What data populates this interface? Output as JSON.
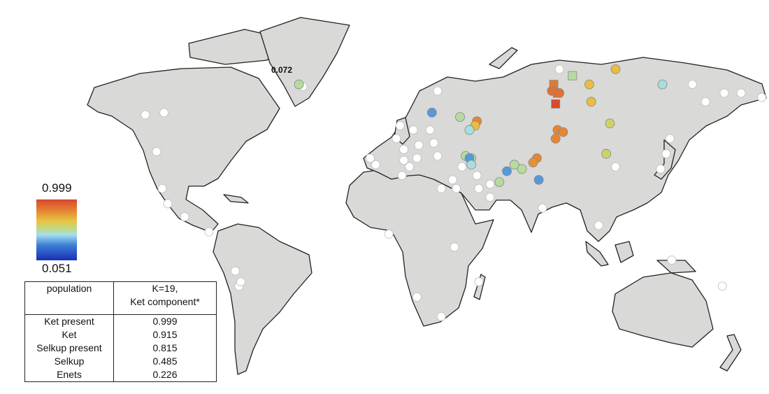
{
  "annotation": {
    "label": "0.072"
  },
  "colorbar": {
    "max_label": "0.999",
    "min_label": "0.051",
    "colors": [
      "#d8462b",
      "#e58a35",
      "#e9c341",
      "#b8dc8f",
      "#a6def0",
      "#3b7fd6",
      "#1a2fb5"
    ]
  },
  "table": {
    "headers": [
      "population",
      "K=19,",
      "Ket component*"
    ],
    "rows": [
      {
        "population": "Ket present",
        "value": "0.999"
      },
      {
        "population": "Ket",
        "value": "0.915"
      },
      {
        "population": "Selkup present",
        "value": "0.815"
      },
      {
        "population": "Selkup",
        "value": "0.485"
      },
      {
        "population": "Enets",
        "value": "0.226"
      }
    ]
  },
  "markers": {
    "no_data_color": "#ffffff",
    "sampled": [
      {
        "lon": -55,
        "lat": 74,
        "value": 0.5,
        "shape": "circle"
      },
      {
        "lon": 16,
        "lat": 61,
        "value": 0.25,
        "shape": "circle"
      },
      {
        "lon": 31,
        "lat": 59,
        "value": 0.5,
        "shape": "circle"
      },
      {
        "lon": 40,
        "lat": 57,
        "value": 0.85,
        "shape": "circle"
      },
      {
        "lon": 39,
        "lat": 55,
        "value": 0.7,
        "shape": "circle"
      },
      {
        "lon": 36,
        "lat": 53,
        "value": 0.4,
        "shape": "circle"
      },
      {
        "lon": 91,
        "lat": 78,
        "value": 0.5,
        "shape": "square"
      },
      {
        "lon": 114,
        "lat": 81,
        "value": 0.7,
        "shape": "circle"
      },
      {
        "lon": 81,
        "lat": 74,
        "value": 0.88,
        "shape": "square"
      },
      {
        "lon": 83,
        "lat": 70,
        "value": 0.92,
        "shape": "square"
      },
      {
        "lon": 82,
        "lat": 65,
        "value": 0.99,
        "shape": "square"
      },
      {
        "lon": 80,
        "lat": 71,
        "value": 0.9,
        "shape": "circle"
      },
      {
        "lon": 84,
        "lat": 70,
        "value": 0.9,
        "shape": "circle"
      },
      {
        "lon": 100,
        "lat": 74,
        "value": 0.7,
        "shape": "circle"
      },
      {
        "lon": 101,
        "lat": 66,
        "value": 0.7,
        "shape": "circle"
      },
      {
        "lon": 139,
        "lat": 74,
        "value": 0.4,
        "shape": "circle"
      },
      {
        "lon": 111,
        "lat": 56,
        "value": 0.6,
        "shape": "circle"
      },
      {
        "lon": 83,
        "lat": 53,
        "value": 0.85,
        "shape": "circle"
      },
      {
        "lon": 86,
        "lat": 52,
        "value": 0.85,
        "shape": "circle"
      },
      {
        "lon": 82,
        "lat": 49,
        "value": 0.85,
        "shape": "circle"
      },
      {
        "lon": 109,
        "lat": 42,
        "value": 0.6,
        "shape": "circle"
      },
      {
        "lon": 72,
        "lat": 40,
        "value": 0.85,
        "shape": "circle"
      },
      {
        "lon": 70,
        "lat": 38,
        "value": 0.82,
        "shape": "circle"
      },
      {
        "lon": 34,
        "lat": 41,
        "value": 0.5,
        "shape": "circle"
      },
      {
        "lon": 37,
        "lat": 40,
        "value": 0.5,
        "shape": "circle"
      },
      {
        "lon": 36,
        "lat": 40,
        "value": 0.25,
        "shape": "circle"
      },
      {
        "lon": 37,
        "lat": 37,
        "value": 0.4,
        "shape": "circle"
      },
      {
        "lon": 60,
        "lat": 37,
        "value": 0.5,
        "shape": "circle"
      },
      {
        "lon": 64,
        "lat": 35,
        "value": 0.5,
        "shape": "circle"
      },
      {
        "lon": 56,
        "lat": 34,
        "value": 0.25,
        "shape": "circle"
      },
      {
        "lon": 52,
        "lat": 29,
        "value": 0.5,
        "shape": "circle"
      },
      {
        "lon": 73,
        "lat": 30,
        "value": 0.25,
        "shape": "circle"
      }
    ],
    "unsampled": [
      [
        84,
        81
      ],
      [
        -53,
        73
      ],
      [
        -137,
        60
      ],
      [
        -127,
        61
      ],
      [
        -131,
        43
      ],
      [
        19,
        71
      ],
      [
        172,
        70
      ],
      [
        181,
        70
      ],
      [
        192,
        68
      ],
      [
        162,
        66
      ],
      [
        155,
        74
      ],
      [
        -1,
        55
      ],
      [
        -3,
        49
      ],
      [
        6,
        53
      ],
      [
        15,
        53
      ],
      [
        1,
        44
      ],
      [
        9,
        46
      ],
      [
        17,
        47
      ],
      [
        19,
        41
      ],
      [
        8,
        40
      ],
      [
        1,
        39
      ],
      [
        4,
        36
      ],
      [
        0,
        32
      ],
      [
        -17,
        40
      ],
      [
        -14,
        37
      ],
      [
        21,
        26
      ],
      [
        27,
        30
      ],
      [
        32,
        36
      ],
      [
        40,
        32
      ],
      [
        47,
        28
      ],
      [
        41,
        26
      ],
      [
        47,
        22
      ],
      [
        29,
        26
      ],
      [
        143,
        49
      ],
      [
        141,
        42
      ],
      [
        138,
        35
      ],
      [
        114,
        36
      ],
      [
        75,
        17
      ],
      [
        105,
        9
      ],
      [
        144,
        -7
      ],
      [
        171,
        -19
      ],
      [
        41,
        -17
      ],
      [
        28,
        -1
      ],
      [
        21,
        -33
      ],
      [
        8,
        -24
      ],
      [
        -7,
        5
      ],
      [
        -128,
        26
      ],
      [
        -125,
        19
      ],
      [
        -116,
        13
      ],
      [
        -103,
        6
      ],
      [
        -89,
        -12
      ],
      [
        -87,
        -19
      ],
      [
        -86,
        -17
      ]
    ]
  }
}
